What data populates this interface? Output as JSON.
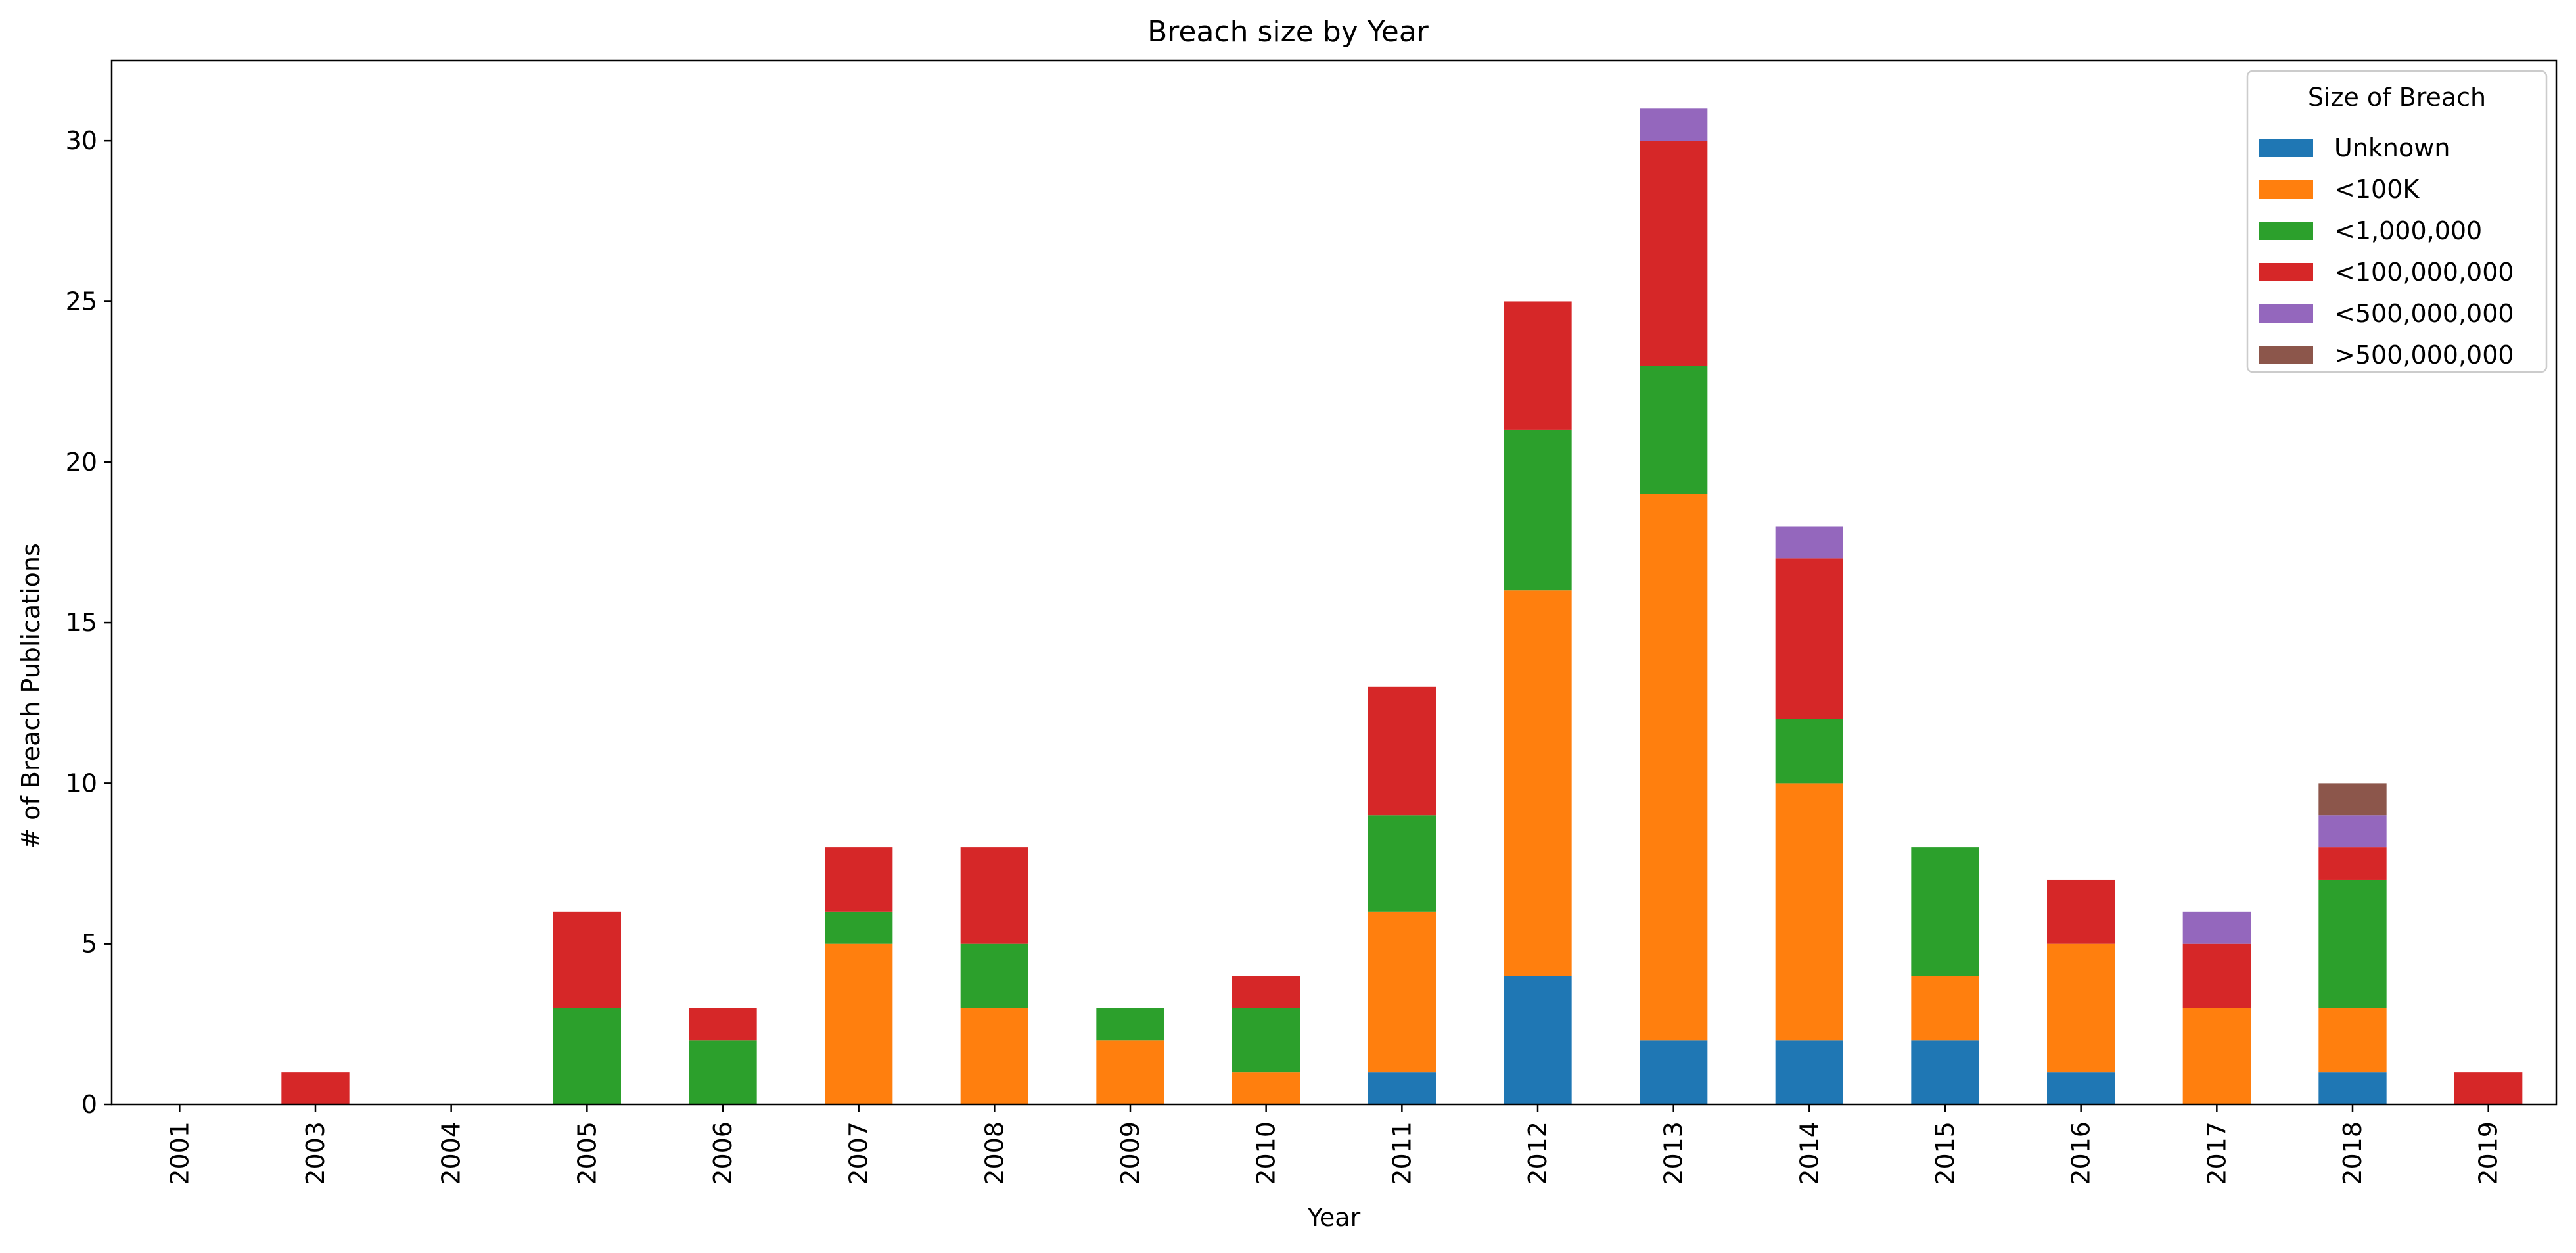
{
  "chart_data": {
    "type": "bar",
    "stacked": true,
    "title": "Breach size by Year",
    "xlabel": "Year",
    "ylabel": "# of Breach Publications",
    "ylim": [
      0,
      32.5
    ],
    "yticks": [
      0,
      5,
      10,
      15,
      20,
      25,
      30
    ],
    "grid": false,
    "legend": {
      "title": "Size of Breach",
      "placement": "top-right"
    },
    "categories": [
      "2001",
      "2003",
      "2004",
      "2005",
      "2006",
      "2007",
      "2008",
      "2009",
      "2010",
      "2011",
      "2012",
      "2013",
      "2014",
      "2015",
      "2016",
      "2017",
      "2018",
      "2019"
    ],
    "series": [
      {
        "name": "Unknown",
        "color": "#1f77b4",
        "values": [
          0,
          0,
          0,
          0,
          0,
          0,
          0,
          0,
          0,
          1,
          4,
          2,
          2,
          2,
          1,
          0,
          1,
          0
        ]
      },
      {
        "name": "<100K",
        "color": "#ff7f0e",
        "values": [
          0,
          0,
          0,
          0,
          0,
          5,
          3,
          2,
          1,
          5,
          12,
          17,
          8,
          2,
          4,
          3,
          2,
          0
        ]
      },
      {
        "name": "<1,000,000",
        "color": "#2ca02c",
        "values": [
          0,
          0,
          0,
          3,
          2,
          1,
          2,
          1,
          2,
          3,
          5,
          4,
          2,
          4,
          0,
          0,
          4,
          0
        ]
      },
      {
        "name": "<100,000,000",
        "color": "#d62728",
        "values": [
          0,
          1,
          0,
          3,
          1,
          2,
          3,
          0,
          1,
          4,
          4,
          7,
          5,
          0,
          2,
          2,
          1,
          1
        ]
      },
      {
        "name": "<500,000,000",
        "color": "#9467bd",
        "values": [
          0,
          0,
          0,
          0,
          0,
          0,
          0,
          0,
          0,
          0,
          0,
          1,
          1,
          0,
          0,
          1,
          1,
          0
        ]
      },
      {
        "name": ">500,000,000",
        "color": "#8c564b",
        "values": [
          0,
          0,
          0,
          0,
          0,
          0,
          0,
          0,
          0,
          0,
          0,
          0,
          0,
          0,
          0,
          0,
          1,
          0
        ]
      }
    ]
  }
}
